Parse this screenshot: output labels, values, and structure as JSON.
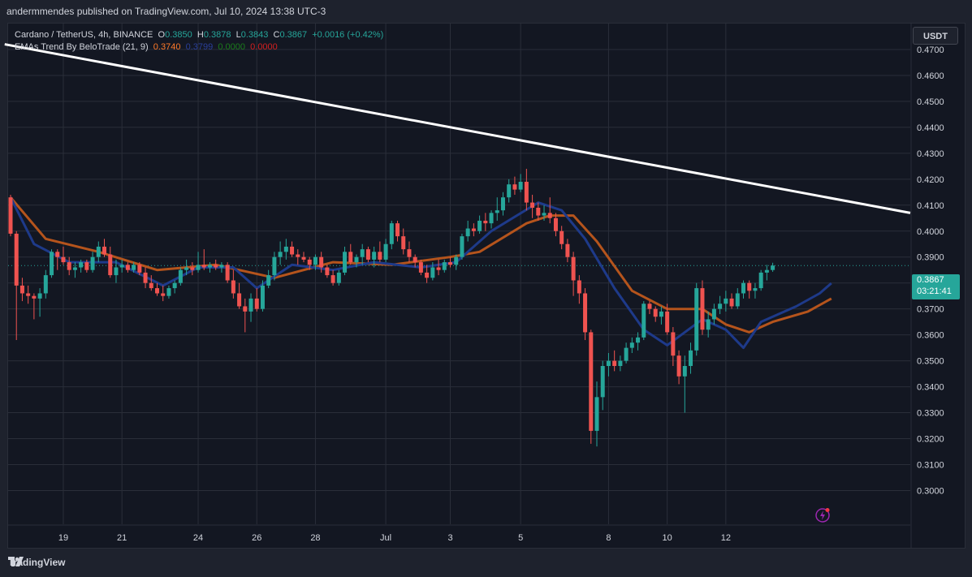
{
  "header": {
    "publish_line": "andermmendes published on TradingView.com, Jul 10, 2024 13:38 UTC-3"
  },
  "legend": {
    "symbol": "Cardano / TetherUS, 4h, BINANCE",
    "o_label": "O",
    "o_value": "0.3850",
    "h_label": "H",
    "h_value": "0.3878",
    "l_label": "L",
    "l_value": "0.3843",
    "c_label": "C",
    "c_value": "0.3867",
    "change": "+0.0016 (+0.42%)",
    "indicator": "EMAs Trend By BeloTrade (21, 9)",
    "ind_v1": "0.3740",
    "ind_v2": "0.3799",
    "ind_v3": "0.0000",
    "ind_v4": "0.0000"
  },
  "currency_button": "USDT",
  "price_tag": {
    "price": "0.3867",
    "countdown": "03:21:41"
  },
  "footer": {
    "brand": "TradingView"
  },
  "colors": {
    "up": "#26a69a",
    "down": "#ef5350",
    "ema_fast": "#1e3a8a",
    "ema_slow": "#b5541c",
    "trendline": "#ffffff",
    "background": "#131722",
    "grid": "#2a2e39"
  },
  "chart_data": {
    "type": "candlestick",
    "title": "Cardano / TetherUS, 4h, BINANCE",
    "x_tick_labels": [
      "19",
      "21",
      "24",
      "26",
      "28",
      "Jul",
      "3",
      "5",
      "8",
      "10",
      "12"
    ],
    "y_tick_labels": [
      "0.4700",
      "0.4600",
      "0.4500",
      "0.4400",
      "0.4300",
      "0.4200",
      "0.4100",
      "0.4000",
      "0.3900",
      "0.3800",
      "0.3700",
      "0.3600",
      "0.3500",
      "0.3400",
      "0.3300",
      "0.3200",
      "0.3100",
      "0.3000"
    ],
    "ylim": [
      0.287,
      0.48
    ],
    "last_price": 0.3867,
    "candles": [
      [
        0.413,
        0.414,
        0.398,
        0.399
      ],
      [
        0.399,
        0.4,
        0.358,
        0.379
      ],
      [
        0.379,
        0.382,
        0.373,
        0.376
      ],
      [
        0.376,
        0.379,
        0.372,
        0.375
      ],
      [
        0.375,
        0.376,
        0.366,
        0.374
      ],
      [
        0.374,
        0.378,
        0.367,
        0.376
      ],
      [
        0.376,
        0.385,
        0.374,
        0.383
      ],
      [
        0.383,
        0.393,
        0.382,
        0.392
      ],
      [
        0.392,
        0.393,
        0.385,
        0.39
      ],
      [
        0.39,
        0.394,
        0.387,
        0.388
      ],
      [
        0.388,
        0.39,
        0.383,
        0.385
      ],
      [
        0.385,
        0.388,
        0.382,
        0.386
      ],
      [
        0.386,
        0.389,
        0.384,
        0.388
      ],
      [
        0.388,
        0.389,
        0.384,
        0.385
      ],
      [
        0.385,
        0.392,
        0.384,
        0.39
      ],
      [
        0.39,
        0.396,
        0.388,
        0.394
      ],
      [
        0.394,
        0.397,
        0.39,
        0.391
      ],
      [
        0.391,
        0.394,
        0.382,
        0.383
      ],
      [
        0.383,
        0.389,
        0.38,
        0.386
      ],
      [
        0.386,
        0.389,
        0.384,
        0.387
      ],
      [
        0.387,
        0.388,
        0.384,
        0.385
      ],
      [
        0.385,
        0.388,
        0.384,
        0.387
      ],
      [
        0.387,
        0.388,
        0.383,
        0.384
      ],
      [
        0.384,
        0.386,
        0.378,
        0.38
      ],
      [
        0.38,
        0.383,
        0.377,
        0.378
      ],
      [
        0.378,
        0.38,
        0.375,
        0.376
      ],
      [
        0.376,
        0.379,
        0.373,
        0.375
      ],
      [
        0.375,
        0.379,
        0.374,
        0.378
      ],
      [
        0.378,
        0.381,
        0.376,
        0.38
      ],
      [
        0.38,
        0.386,
        0.379,
        0.385
      ],
      [
        0.385,
        0.389,
        0.383,
        0.386
      ],
      [
        0.386,
        0.388,
        0.383,
        0.385
      ],
      [
        0.385,
        0.392,
        0.384,
        0.387
      ],
      [
        0.387,
        0.393,
        0.385,
        0.386
      ],
      [
        0.386,
        0.388,
        0.384,
        0.387
      ],
      [
        0.387,
        0.389,
        0.385,
        0.386
      ],
      [
        0.386,
        0.388,
        0.384,
        0.387
      ],
      [
        0.387,
        0.388,
        0.38,
        0.381
      ],
      [
        0.381,
        0.385,
        0.374,
        0.376
      ],
      [
        0.376,
        0.38,
        0.37,
        0.371
      ],
      [
        0.371,
        0.374,
        0.361,
        0.369
      ],
      [
        0.369,
        0.376,
        0.365,
        0.374
      ],
      [
        0.374,
        0.378,
        0.369,
        0.37
      ],
      [
        0.37,
        0.381,
        0.369,
        0.379
      ],
      [
        0.379,
        0.385,
        0.378,
        0.383
      ],
      [
        0.383,
        0.392,
        0.381,
        0.39
      ],
      [
        0.39,
        0.396,
        0.387,
        0.392
      ],
      [
        0.392,
        0.397,
        0.389,
        0.394
      ],
      [
        0.394,
        0.396,
        0.39,
        0.391
      ],
      [
        0.391,
        0.393,
        0.387,
        0.39
      ],
      [
        0.39,
        0.392,
        0.388,
        0.389
      ],
      [
        0.389,
        0.39,
        0.385,
        0.387
      ],
      [
        0.387,
        0.391,
        0.385,
        0.39
      ],
      [
        0.39,
        0.392,
        0.384,
        0.386
      ],
      [
        0.386,
        0.387,
        0.382,
        0.383
      ],
      [
        0.383,
        0.385,
        0.379,
        0.38
      ],
      [
        0.38,
        0.385,
        0.379,
        0.384
      ],
      [
        0.384,
        0.394,
        0.383,
        0.392
      ],
      [
        0.392,
        0.395,
        0.387,
        0.388
      ],
      [
        0.388,
        0.391,
        0.386,
        0.39
      ],
      [
        0.39,
        0.395,
        0.387,
        0.393
      ],
      [
        0.393,
        0.394,
        0.388,
        0.389
      ],
      [
        0.389,
        0.394,
        0.386,
        0.392
      ],
      [
        0.392,
        0.396,
        0.388,
        0.389
      ],
      [
        0.389,
        0.397,
        0.388,
        0.395
      ],
      [
        0.395,
        0.404,
        0.393,
        0.403
      ],
      [
        0.403,
        0.404,
        0.396,
        0.398
      ],
      [
        0.398,
        0.401,
        0.391,
        0.393
      ],
      [
        0.393,
        0.396,
        0.388,
        0.39
      ],
      [
        0.39,
        0.391,
        0.386,
        0.388
      ],
      [
        0.388,
        0.389,
        0.383,
        0.384
      ],
      [
        0.384,
        0.387,
        0.38,
        0.382
      ],
      [
        0.382,
        0.388,
        0.381,
        0.386
      ],
      [
        0.386,
        0.389,
        0.383,
        0.385
      ],
      [
        0.385,
        0.389,
        0.384,
        0.388
      ],
      [
        0.388,
        0.39,
        0.386,
        0.387
      ],
      [
        0.387,
        0.391,
        0.385,
        0.39
      ],
      [
        0.39,
        0.399,
        0.389,
        0.398
      ],
      [
        0.398,
        0.404,
        0.396,
        0.401
      ],
      [
        0.401,
        0.403,
        0.398,
        0.4
      ],
      [
        0.4,
        0.406,
        0.399,
        0.404
      ],
      [
        0.404,
        0.407,
        0.4,
        0.403
      ],
      [
        0.403,
        0.408,
        0.401,
        0.407
      ],
      [
        0.407,
        0.413,
        0.404,
        0.408
      ],
      [
        0.408,
        0.415,
        0.406,
        0.413
      ],
      [
        0.413,
        0.42,
        0.411,
        0.418
      ],
      [
        0.418,
        0.421,
        0.414,
        0.416
      ],
      [
        0.416,
        0.422,
        0.415,
        0.419
      ],
      [
        0.419,
        0.424,
        0.408,
        0.411
      ],
      [
        0.411,
        0.414,
        0.405,
        0.409
      ],
      [
        0.409,
        0.411,
        0.404,
        0.406
      ],
      [
        0.406,
        0.41,
        0.404,
        0.407
      ],
      [
        0.407,
        0.413,
        0.403,
        0.405
      ],
      [
        0.405,
        0.407,
        0.398,
        0.4
      ],
      [
        0.4,
        0.402,
        0.393,
        0.395
      ],
      [
        0.395,
        0.397,
        0.388,
        0.39
      ],
      [
        0.39,
        0.392,
        0.375,
        0.381
      ],
      [
        0.381,
        0.383,
        0.372,
        0.376
      ],
      [
        0.376,
        0.378,
        0.358,
        0.361
      ],
      [
        0.361,
        0.362,
        0.318,
        0.323
      ],
      [
        0.323,
        0.342,
        0.317,
        0.336
      ],
      [
        0.336,
        0.35,
        0.331,
        0.348
      ],
      [
        0.348,
        0.353,
        0.344,
        0.35
      ],
      [
        0.35,
        0.354,
        0.346,
        0.348
      ],
      [
        0.348,
        0.352,
        0.346,
        0.35
      ],
      [
        0.35,
        0.357,
        0.349,
        0.355
      ],
      [
        0.355,
        0.359,
        0.353,
        0.357
      ],
      [
        0.357,
        0.361,
        0.354,
        0.359
      ],
      [
        0.359,
        0.373,
        0.358,
        0.372
      ],
      [
        0.372,
        0.373,
        0.368,
        0.37
      ],
      [
        0.37,
        0.371,
        0.365,
        0.367
      ],
      [
        0.367,
        0.371,
        0.364,
        0.369
      ],
      [
        0.369,
        0.372,
        0.36,
        0.361
      ],
      [
        0.361,
        0.363,
        0.348,
        0.352
      ],
      [
        0.352,
        0.354,
        0.341,
        0.344
      ],
      [
        0.344,
        0.352,
        0.33,
        0.348
      ],
      [
        0.348,
        0.357,
        0.345,
        0.354
      ],
      [
        0.354,
        0.38,
        0.352,
        0.378
      ],
      [
        0.378,
        0.381,
        0.36,
        0.362
      ],
      [
        0.362,
        0.369,
        0.359,
        0.366
      ],
      [
        0.366,
        0.372,
        0.364,
        0.37
      ],
      [
        0.37,
        0.375,
        0.368,
        0.372
      ],
      [
        0.372,
        0.377,
        0.369,
        0.374
      ],
      [
        0.374,
        0.376,
        0.37,
        0.371
      ],
      [
        0.371,
        0.378,
        0.37,
        0.376
      ],
      [
        0.376,
        0.381,
        0.374,
        0.38
      ],
      [
        0.38,
        0.381,
        0.374,
        0.377
      ],
      [
        0.377,
        0.38,
        0.374,
        0.378
      ],
      [
        0.378,
        0.385,
        0.377,
        0.384
      ],
      [
        0.384,
        0.387,
        0.381,
        0.385
      ],
      [
        0.385,
        0.3878,
        0.3843,
        0.3867
      ]
    ],
    "ema_slow": {
      "name": "EMA 21",
      "points": [
        [
          0,
          0.413
        ],
        [
          6,
          0.397
        ],
        [
          15,
          0.392
        ],
        [
          25,
          0.385
        ],
        [
          35,
          0.387
        ],
        [
          45,
          0.382
        ],
        [
          55,
          0.388
        ],
        [
          65,
          0.387
        ],
        [
          75,
          0.39
        ],
        [
          80,
          0.392
        ],
        [
          88,
          0.403
        ],
        [
          92,
          0.406
        ],
        [
          96,
          0.406
        ],
        [
          100,
          0.396
        ],
        [
          106,
          0.377
        ],
        [
          112,
          0.37
        ],
        [
          118,
          0.37
        ],
        [
          122,
          0.364
        ],
        [
          126,
          0.361
        ],
        [
          130,
          0.365
        ],
        [
          136,
          0.369
        ],
        [
          140,
          0.374
        ]
      ]
    },
    "ema_fast": {
      "name": "EMA 9",
      "points": [
        [
          0,
          0.413
        ],
        [
          4,
          0.395
        ],
        [
          10,
          0.388
        ],
        [
          18,
          0.388
        ],
        [
          26,
          0.379
        ],
        [
          32,
          0.386
        ],
        [
          38,
          0.386
        ],
        [
          42,
          0.378
        ],
        [
          48,
          0.387
        ],
        [
          55,
          0.385
        ],
        [
          62,
          0.388
        ],
        [
          70,
          0.386
        ],
        [
          76,
          0.388
        ],
        [
          82,
          0.4
        ],
        [
          90,
          0.411
        ],
        [
          94,
          0.408
        ],
        [
          98,
          0.397
        ],
        [
          103,
          0.378
        ],
        [
          108,
          0.362
        ],
        [
          112,
          0.356
        ],
        [
          118,
          0.366
        ],
        [
          122,
          0.362
        ],
        [
          125,
          0.355
        ],
        [
          128,
          0.365
        ],
        [
          134,
          0.371
        ],
        [
          138,
          0.376
        ],
        [
          140,
          0.3799
        ]
      ]
    },
    "trendline": {
      "x0": -1,
      "y0": 0.472,
      "x1": 156,
      "y1": 0.407
    },
    "x_tick_candle_index": [
      9,
      19,
      32,
      42,
      52,
      64,
      75,
      87,
      102,
      112,
      122
    ]
  }
}
